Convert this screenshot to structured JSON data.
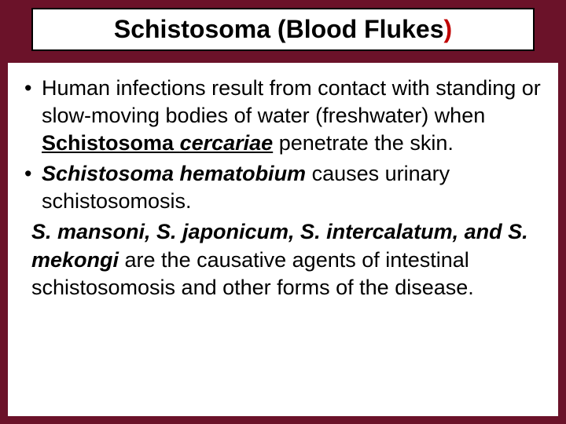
{
  "slide": {
    "background_color": "#6b1229",
    "content_background": "#ffffff",
    "title_box": {
      "border_color": "#000000",
      "background_color": "#ffffff"
    },
    "title": {
      "main": "Schistosoma (Blood Flukes",
      "paren_close": ")",
      "fontsize": 32,
      "font_weight": "bold",
      "paren_color": "#c00000",
      "text_color": "#000000"
    },
    "body_fontsize": 27,
    "body_color": "#000000",
    "bullets": [
      {
        "pre1": "Human infections result from contact with standing or slow-moving bodies of water (freshwater) when ",
        "term1": "Schistosoma ",
        "term2": "cercariae",
        "post1": " penetrate the skin."
      },
      {
        "term3": "Schistosoma hematobium",
        "post2": " causes urinary schistosomosis."
      }
    ],
    "trailing": {
      "species": "S. mansoni, S. japonicum, S. intercalatum, and  S. mekongi",
      "rest": " are the causative agents of intestinal schistosomosis and other forms of the disease."
    }
  }
}
